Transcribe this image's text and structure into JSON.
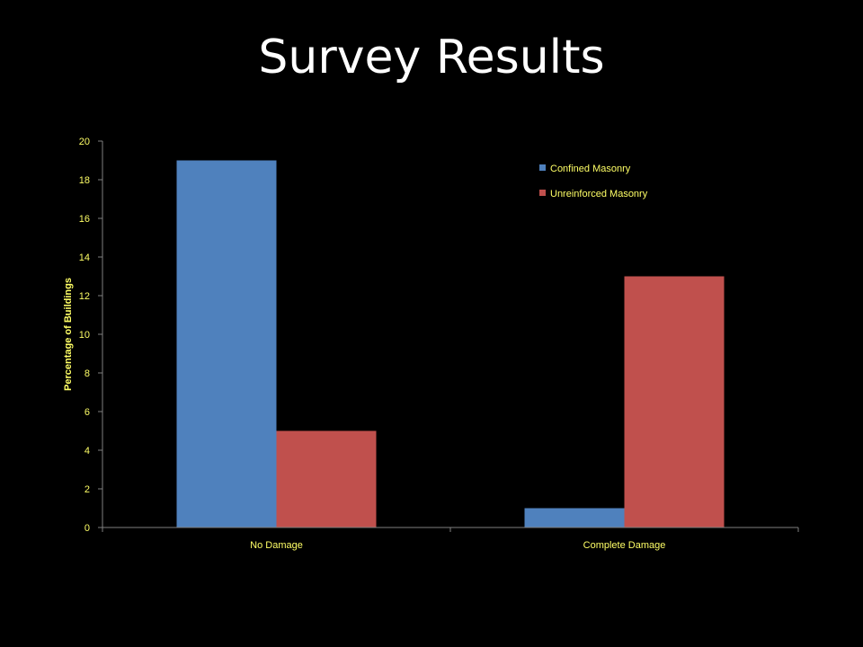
{
  "slide": {
    "title": "Survey Results"
  },
  "chart_data": {
    "type": "bar",
    "categories": [
      "No Damage",
      "Complete Damage"
    ],
    "series": [
      {
        "name": "Confined Masonry",
        "values": [
          19,
          1
        ],
        "color": "#4F81BD"
      },
      {
        "name": "Unreinforced Masonry",
        "values": [
          5,
          13
        ],
        "color": "#C0504D"
      }
    ],
    "ylabel": "Percentage of Buildings",
    "xlabel": "",
    "ylim": [
      0,
      20
    ],
    "yticks": [
      0,
      2,
      4,
      6,
      8,
      10,
      12,
      14,
      16,
      18,
      20
    ],
    "grid": false,
    "legend_position": "top-right",
    "axis_color": "#808080",
    "text_color": "#FFFF66"
  }
}
